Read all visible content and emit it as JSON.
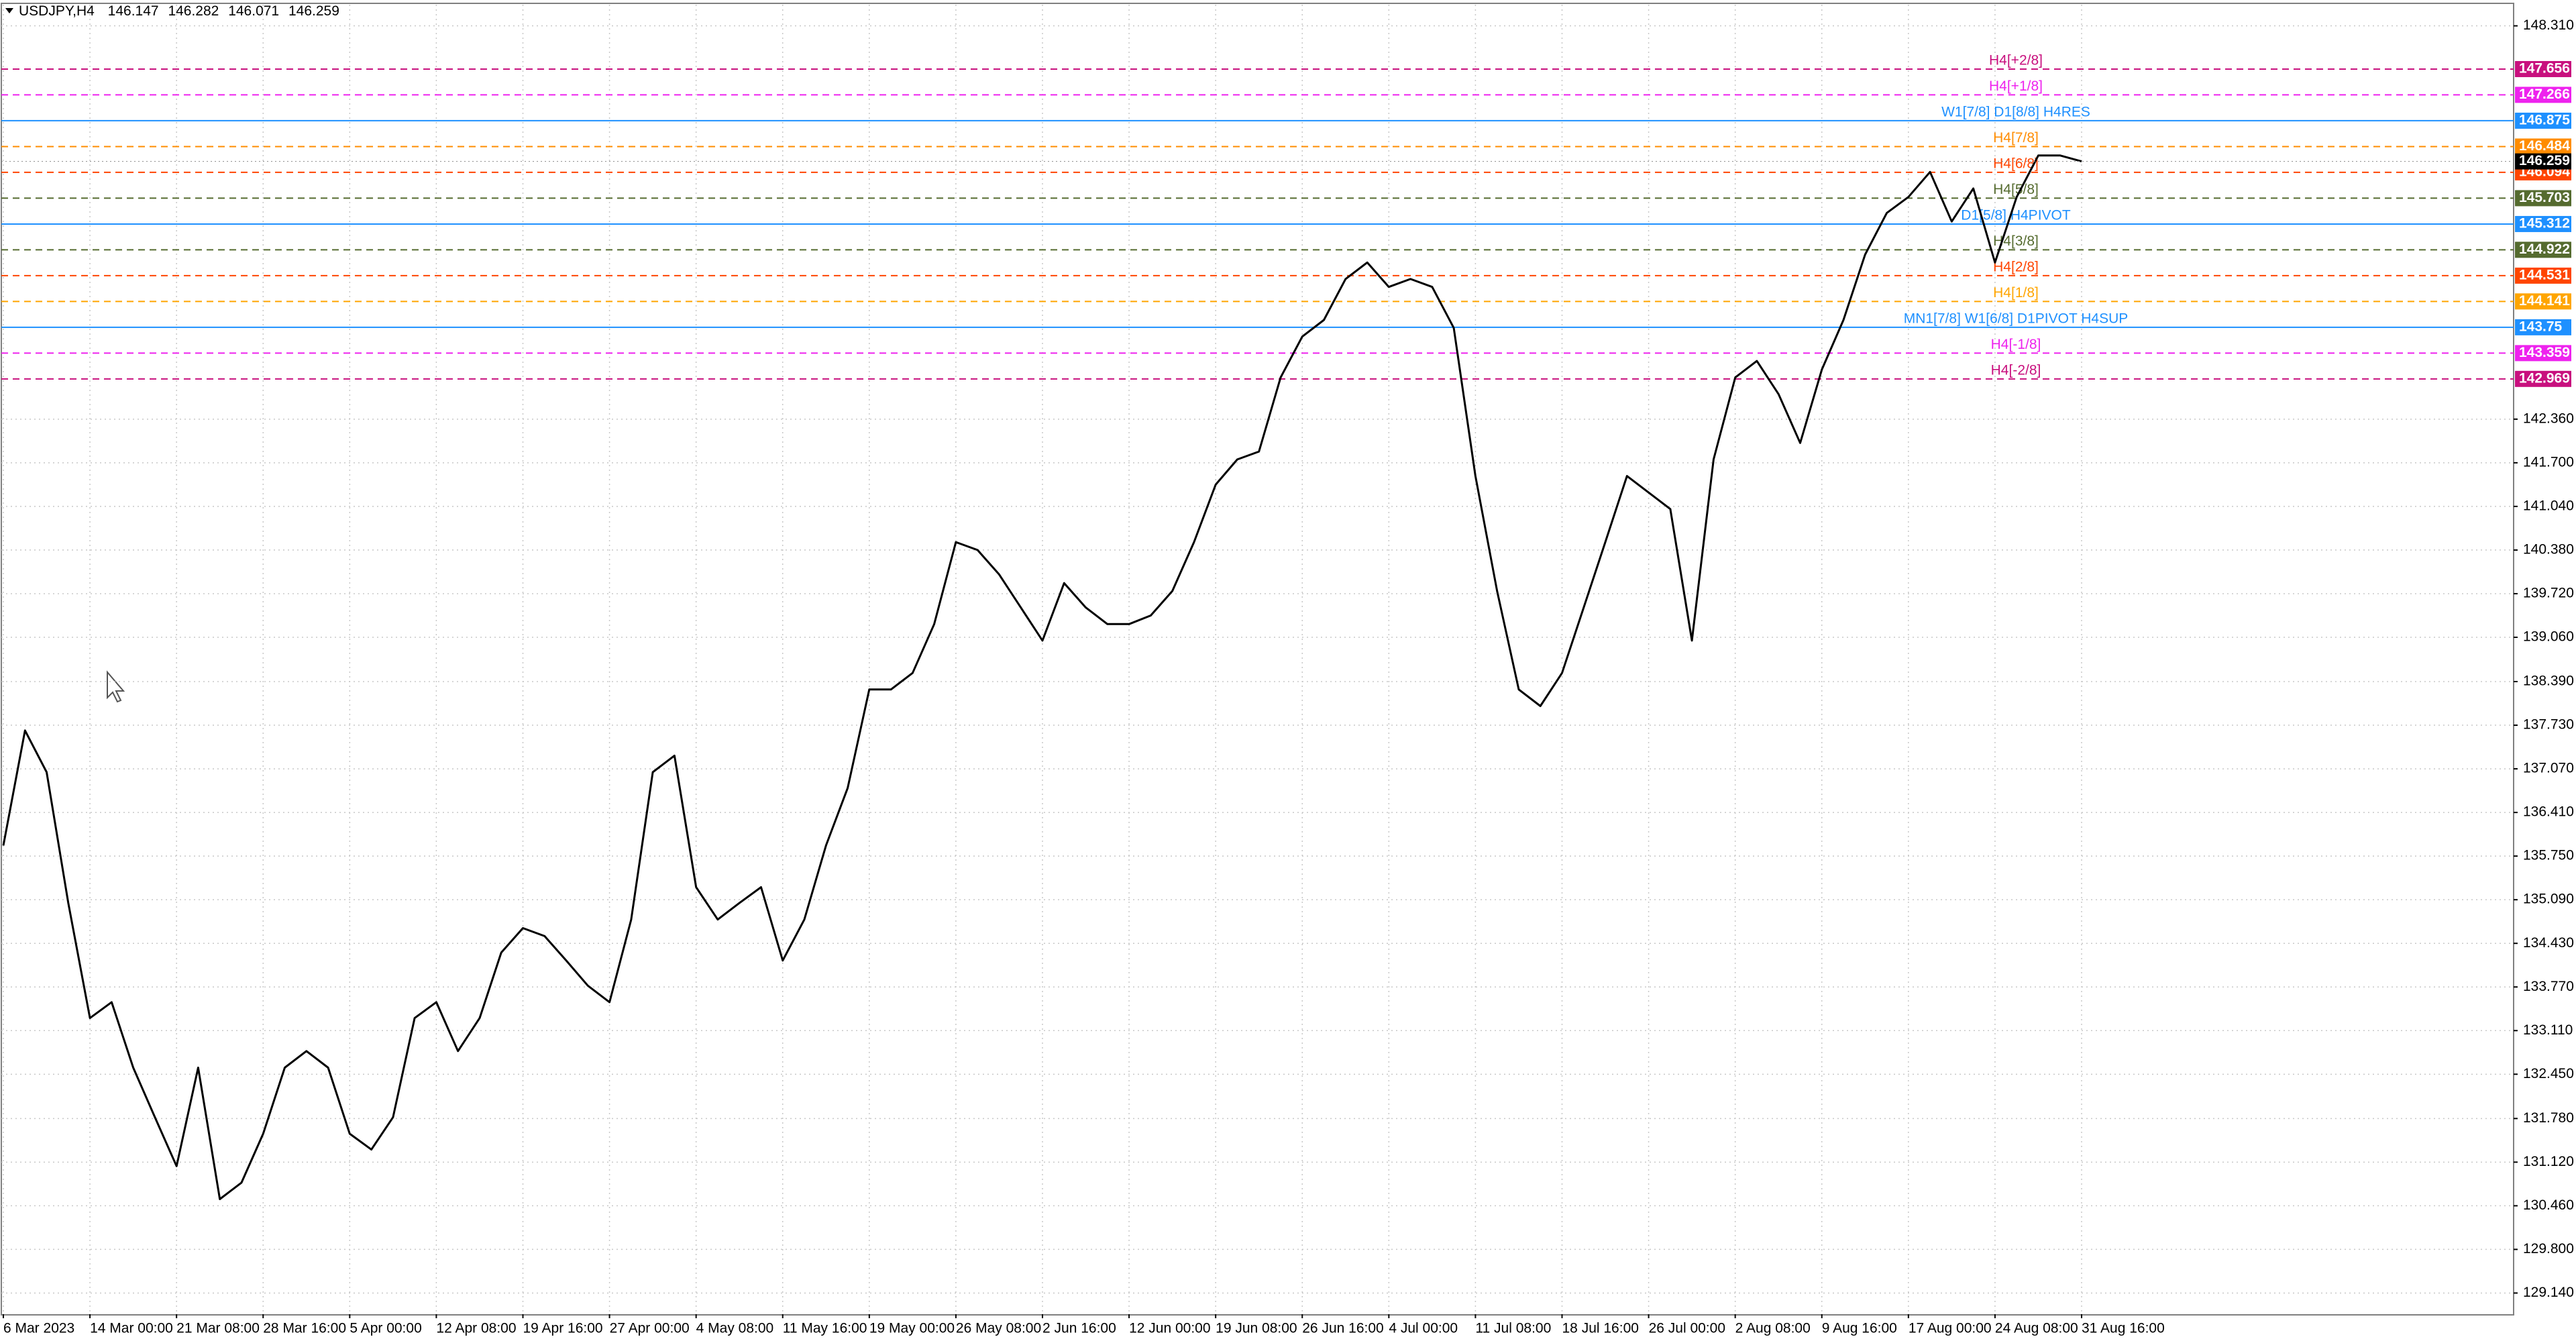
{
  "chart_data": {
    "type": "line",
    "symbol": "USDJPY,H4",
    "open": 146.147,
    "high": 146.282,
    "low": 146.071,
    "close": 146.259,
    "color": "#000000",
    "grid": true,
    "categories": [
      "6 Mar 2023",
      null,
      null,
      null,
      "14 Mar 00:00",
      null,
      null,
      null,
      "21 Mar 08:00",
      null,
      null,
      null,
      "28 Mar 16:00",
      null,
      null,
      null,
      "5 Apr 00:00",
      null,
      null,
      null,
      "12 Apr 08:00",
      null,
      null,
      null,
      "19 Apr 16:00",
      null,
      null,
      null,
      "27 Apr 00:00",
      null,
      null,
      null,
      "4 May 08:00",
      null,
      null,
      null,
      "11 May 16:00",
      null,
      null,
      null,
      "19 May 00:00",
      null,
      null,
      null,
      "26 May 08:00",
      null,
      null,
      null,
      "2 Jun 16:00",
      null,
      null,
      null,
      "12 Jun 00:00",
      null,
      null,
      null,
      "19 Jun 08:00",
      null,
      null,
      null,
      "26 Jun 16:00",
      null,
      null,
      null,
      "4 Jul 00:00",
      null,
      null,
      null,
      "11 Jul 08:00",
      null,
      null,
      null,
      "18 Jul 16:00",
      null,
      null,
      null,
      "26 Jul 00:00",
      null,
      null,
      null,
      "2 Aug 08:00",
      null,
      null,
      null,
      "9 Aug 16:00",
      null,
      null,
      null,
      "17 Aug 00:00",
      null,
      null,
      null,
      "24 Aug 08:00",
      null,
      null,
      null,
      "31 Aug 16:00"
    ],
    "values": [
      135.91,
      137.65,
      137.02,
      135.04,
      133.3,
      133.54,
      132.55,
      131.8,
      131.06,
      132.55,
      130.56,
      130.81,
      131.55,
      132.55,
      132.8,
      132.55,
      131.55,
      131.31,
      131.8,
      133.3,
      133.54,
      132.8,
      133.3,
      134.29,
      134.66,
      134.54,
      134.17,
      133.79,
      133.54,
      134.79,
      137.02,
      137.27,
      135.28,
      134.79,
      135.04,
      135.28,
      134.17,
      134.79,
      135.91,
      136.78,
      138.27,
      138.27,
      138.52,
      139.26,
      140.5,
      140.38,
      140.01,
      139.51,
      139.01,
      139.88,
      139.51,
      139.26,
      139.26,
      139.39,
      139.76,
      140.5,
      141.37,
      141.75,
      141.87,
      142.99,
      143.61,
      143.86,
      144.48,
      144.73,
      144.36,
      144.48,
      144.36,
      143.74,
      141.5,
      139.76,
      138.27,
      138.02,
      138.52,
      139.51,
      140.5,
      141.5,
      141.25,
      141.0,
      139.01,
      141.75,
      142.99,
      143.24,
      142.74,
      142.0,
      143.11,
      143.86,
      144.85,
      145.48,
      145.72,
      146.1,
      145.35,
      145.85,
      144.73,
      145.72,
      146.35,
      146.35,
      146.259
    ],
    "ylim": [
      128.82,
      148.63
    ],
    "yticks": [
      {
        "value": 148.31,
        "label": "148.310"
      },
      {
        "value": 142.36,
        "label": "142.360"
      },
      {
        "value": 141.7,
        "label": "141.700"
      },
      {
        "value": 141.04,
        "label": "141.040"
      },
      {
        "value": 140.38,
        "label": "140.380"
      },
      {
        "value": 139.72,
        "label": "139.720"
      },
      {
        "value": 139.06,
        "label": "139.060"
      },
      {
        "value": 138.39,
        "label": "138.390"
      },
      {
        "value": 137.73,
        "label": "137.730"
      },
      {
        "value": 137.07,
        "label": "137.070"
      },
      {
        "value": 136.41,
        "label": "136.410"
      },
      {
        "value": 135.75,
        "label": "135.750"
      },
      {
        "value": 135.09,
        "label": "135.090"
      },
      {
        "value": 134.43,
        "label": "134.430"
      },
      {
        "value": 133.77,
        "label": "133.770"
      },
      {
        "value": 133.11,
        "label": "133.110"
      },
      {
        "value": 132.45,
        "label": "132.450"
      },
      {
        "value": 131.78,
        "label": "131.780"
      },
      {
        "value": 131.12,
        "label": "131.120"
      },
      {
        "value": 130.46,
        "label": "130.460"
      },
      {
        "value": 129.8,
        "label": "129.800"
      },
      {
        "value": 129.14,
        "label": "129.140"
      }
    ],
    "levels": [
      {
        "label": "H4[+2/8]",
        "value": 147.656,
        "color": "#c8107e",
        "style": "dashed"
      },
      {
        "label": "H4[+1/8]",
        "value": 147.266,
        "color": "#ee22ee",
        "style": "dashed"
      },
      {
        "label": "W1[7/8] D1[8/8] H4RES",
        "value": 146.875,
        "color": "#1e90ff",
        "style": "solid"
      },
      {
        "label": "H4[7/8]",
        "value": 146.484,
        "color": "#ff8c00",
        "style": "dashed"
      },
      {
        "label": "H4[6/8]",
        "value": 146.094,
        "color": "#ff4500",
        "style": "dashed"
      },
      {
        "label": "H4[5/8]",
        "value": 145.703,
        "color": "#556b2f",
        "style": "dashed"
      },
      {
        "label": "D1[5/8] H4PIVOT",
        "value": 145.312,
        "color": "#1e90ff",
        "style": "solid"
      },
      {
        "label": "H4[3/8]",
        "value": 144.922,
        "color": "#556b2f",
        "style": "dashed"
      },
      {
        "label": "H4[2/8]",
        "value": 144.531,
        "color": "#ff4500",
        "style": "dashed"
      },
      {
        "label": "H4[1/8]",
        "value": 144.141,
        "color": "#ffa500",
        "style": "dashed"
      },
      {
        "label": "MN1[7/8] W1[6/8] D1PIVOT H4SUP",
        "value": 143.75,
        "color": "#1e90ff",
        "style": "solid"
      },
      {
        "label": "H4[-1/8]",
        "value": 143.359,
        "color": "#ee22ee",
        "style": "dashed"
      },
      {
        "label": "H4[-2/8]",
        "value": 142.969,
        "color": "#c8107e",
        "style": "dashed"
      }
    ]
  }
}
